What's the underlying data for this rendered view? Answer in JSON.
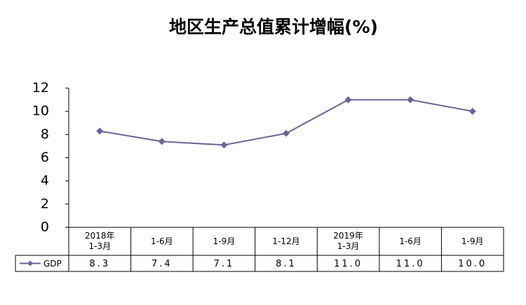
{
  "chart_data": {
    "type": "line",
    "title": "地区生产总值累计增幅(%)",
    "categories": [
      "2018年\n1-3月",
      "1-6月",
      "1-9月",
      "1-12月",
      "2019年\n1-3月",
      "1-6月",
      "1-9月"
    ],
    "series": [
      {
        "name": "GDP",
        "color": "#666699",
        "values": [
          8.3,
          7.4,
          7.1,
          8.1,
          11,
          11,
          10
        ],
        "value_labels": [
          "8.3",
          "7.4",
          "7.1",
          "8.1",
          "11.0",
          "11.0",
          "10.0"
        ]
      }
    ],
    "ylim": [
      0,
      12
    ],
    "yticks": [
      0,
      2,
      4,
      6,
      8,
      10,
      12
    ],
    "grid": false,
    "data_table": true
  }
}
